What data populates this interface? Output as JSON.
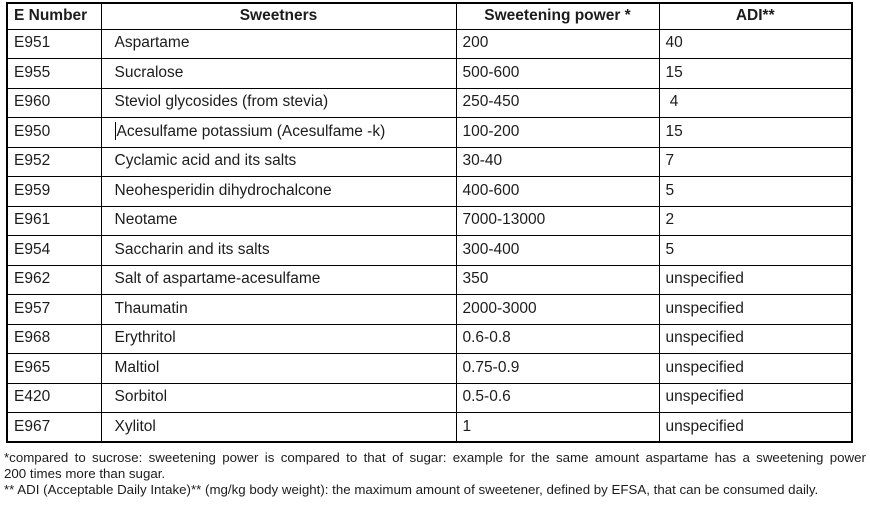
{
  "document": {
    "table": {
      "headers": [
        {
          "label": "E Number"
        },
        {
          "label": "Sweetners"
        },
        {
          "label": "Sweetening power *"
        },
        {
          "label": "ADI**"
        }
      ],
      "rows": [
        {
          "e_number": "E951",
          "sweetener": "Aspartame",
          "sweetening_power": "200",
          "adi": "40"
        },
        {
          "e_number": "E955",
          "sweetener": "Sucralose",
          "sweetening_power": "500-600",
          "adi": "15"
        },
        {
          "e_number": "E960",
          "sweetener": "Steviol glycosides (from stevia)",
          "sweetening_power": "250-450",
          "adi": " 4"
        },
        {
          "e_number": "E950",
          "sweetener": "Acesulfame potassium (Acesulfame -k)",
          "sweetening_power": "100-200",
          "adi": "15",
          "caret": true
        },
        {
          "e_number": "E952",
          "sweetener": "Cyclamic acid and its salts",
          "sweetening_power": "30-40",
          "adi": "7"
        },
        {
          "e_number": "E959",
          "sweetener": "Neohesperidin dihydrochalcone",
          "sweetening_power": "400-600",
          "adi": "5"
        },
        {
          "e_number": "E961",
          "sweetener": "Neotame",
          "sweetening_power": "7000-13000",
          "adi": "2"
        },
        {
          "e_number": "E954",
          "sweetener": "Saccharin and its salts",
          "sweetening_power": "300-400",
          "adi": "5"
        },
        {
          "e_number": "E962",
          "sweetener": "Salt of aspartame-acesulfame",
          "sweetening_power": "350",
          "adi": "unspecified"
        },
        {
          "e_number": "E957",
          "sweetener": "Thaumatin",
          "sweetening_power": "2000-3000",
          "adi": "unspecified"
        },
        {
          "e_number": "E968",
          "sweetener": "Erythritol",
          "sweetening_power": "0.6-0.8",
          "adi": "unspecified"
        },
        {
          "e_number": "E965",
          "sweetener": "Maltiol",
          "sweetening_power": "0.75-0.9",
          "adi": "unspecified"
        },
        {
          "e_number": "E420",
          "sweetener": "Sorbitol",
          "sweetening_power": "0.5-0.6",
          "adi": "unspecified"
        },
        {
          "e_number": "E967",
          "sweetener": "Xylitol",
          "sweetening_power": "1",
          "adi": "unspecified"
        }
      ]
    },
    "footnotes": {
      "note1_line1": "*compared to sucrose: sweetening power is compared to that of sugar: example for the same amount aspartame has a sweetening power",
      "note1_line2": "200 times more than sugar.",
      "note2": "** ADI (Acceptable Daily Intake)** (mg/kg body weight): the maximum amount of sweetener, defined by EFSA, that can be consumed daily."
    },
    "colors": {
      "text": "#1c1c1c",
      "border": "#000000",
      "background": "#ffffff"
    }
  }
}
